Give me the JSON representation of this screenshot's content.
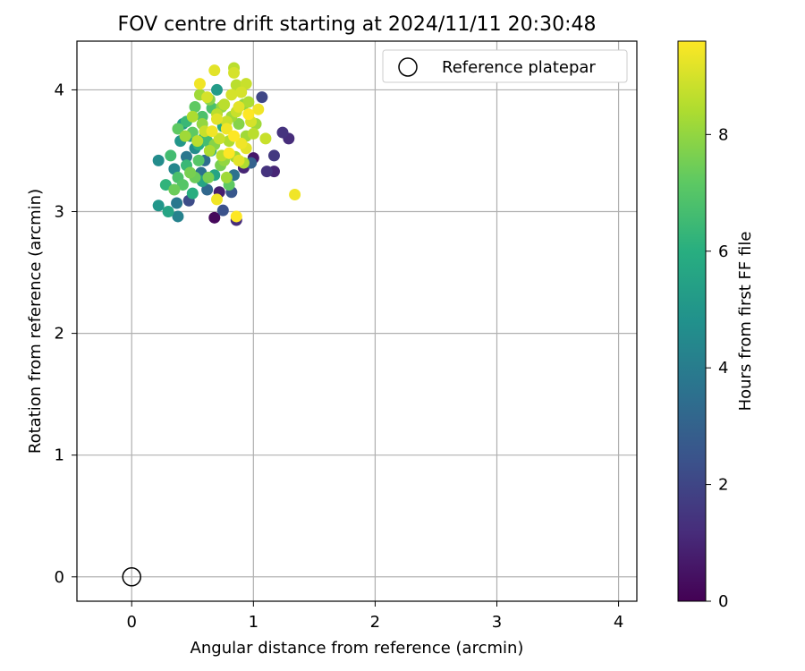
{
  "chart_data": {
    "type": "scatter",
    "title": "FOV centre drift starting at 2024/11/11 20:30:48",
    "xlabel": "Angular distance from reference (arcmin)",
    "ylabel": "Rotation from reference (arcmin)",
    "xlim": [
      -0.45,
      4.15
    ],
    "ylim": [
      -0.2,
      4.4
    ],
    "xticks": [
      0,
      1,
      2,
      3,
      4
    ],
    "yticks": [
      0,
      1,
      2,
      3,
      4
    ],
    "grid": true,
    "legend": {
      "position": "top-right",
      "entries": [
        "Reference platepar"
      ]
    },
    "reference_point": {
      "name": "Reference platepar",
      "x": 0,
      "y": 0
    },
    "colorbar": {
      "label": "Hours from first FF file",
      "colormap": "viridis",
      "range": [
        0,
        9.6
      ],
      "ticks": [
        0,
        2,
        4,
        6,
        8
      ]
    },
    "series": [
      {
        "name": "",
        "points": [
          [
            0.68,
            2.95,
            0.2
          ],
          [
            0.86,
            2.93,
            1.2
          ],
          [
            0.75,
            3.01,
            2.4
          ],
          [
            0.72,
            3.16,
            0.8
          ],
          [
            0.82,
            3.16,
            2.6
          ],
          [
            0.62,
            3.18,
            3.2
          ],
          [
            0.47,
            3.09,
            2.2
          ],
          [
            0.92,
            3.36,
            1.0
          ],
          [
            1.0,
            3.44,
            0.6
          ],
          [
            1.17,
            3.46,
            1.6
          ],
          [
            1.11,
            3.33,
            1.4
          ],
          [
            1.17,
            3.33,
            1.0
          ],
          [
            1.29,
            3.6,
            1.2
          ],
          [
            1.24,
            3.65,
            1.4
          ],
          [
            1.07,
            3.94,
            2.0
          ],
          [
            0.98,
            3.4,
            3.0
          ],
          [
            0.84,
            3.3,
            3.6
          ],
          [
            0.57,
            3.32,
            3.6
          ],
          [
            0.37,
            3.07,
            3.8
          ],
          [
            0.38,
            2.96,
            4.2
          ],
          [
            0.22,
            3.05,
            5.0
          ],
          [
            0.22,
            3.42,
            4.6
          ],
          [
            0.35,
            3.35,
            4.4
          ],
          [
            0.45,
            3.45,
            3.8
          ],
          [
            0.52,
            3.52,
            4.6
          ],
          [
            0.6,
            3.42,
            3.4
          ],
          [
            0.4,
            3.58,
            5.0
          ],
          [
            0.48,
            3.62,
            5.4
          ],
          [
            0.42,
            3.72,
            5.2
          ],
          [
            0.55,
            3.55,
            6.0
          ],
          [
            0.65,
            3.5,
            5.6
          ],
          [
            0.7,
            4.0,
            5.2
          ],
          [
            0.75,
            3.7,
            5.8
          ],
          [
            0.68,
            3.3,
            5.6
          ],
          [
            0.58,
            3.25,
            5.6
          ],
          [
            0.5,
            3.15,
            6.0
          ],
          [
            0.3,
            3.0,
            5.6
          ],
          [
            0.28,
            3.22,
            6.2
          ],
          [
            0.38,
            3.28,
            6.8
          ],
          [
            0.45,
            3.38,
            6.4
          ],
          [
            0.32,
            3.46,
            6.6
          ],
          [
            0.55,
            3.42,
            7.0
          ],
          [
            0.62,
            3.58,
            6.6
          ],
          [
            0.5,
            3.65,
            7.2
          ],
          [
            0.45,
            3.74,
            6.4
          ],
          [
            0.58,
            3.78,
            6.8
          ],
          [
            0.66,
            3.85,
            6.8
          ],
          [
            0.52,
            3.86,
            7.2
          ],
          [
            0.6,
            3.62,
            6.0
          ],
          [
            0.38,
            3.68,
            7.2
          ],
          [
            0.35,
            3.18,
            7.4
          ],
          [
            0.42,
            3.22,
            7.0
          ],
          [
            0.52,
            3.28,
            7.4
          ],
          [
            0.48,
            3.32,
            7.6
          ],
          [
            0.63,
            3.28,
            7.6
          ],
          [
            0.8,
            3.22,
            7.2
          ],
          [
            0.73,
            3.38,
            7.6
          ],
          [
            0.68,
            3.55,
            7.8
          ],
          [
            0.58,
            3.72,
            8.0
          ],
          [
            0.56,
            3.96,
            8.2
          ],
          [
            0.64,
            3.92,
            7.8
          ],
          [
            0.74,
            3.86,
            8.0
          ],
          [
            0.82,
            3.78,
            8.2
          ],
          [
            0.88,
            3.72,
            7.8
          ],
          [
            0.92,
            3.88,
            8.0
          ],
          [
            0.94,
            3.62,
            8.2
          ],
          [
            0.8,
            3.58,
            8.4
          ],
          [
            0.85,
            3.45,
            8.2
          ],
          [
            0.76,
            3.42,
            8.0
          ],
          [
            0.78,
            3.28,
            8.2
          ],
          [
            0.86,
            4.04,
            8.6
          ],
          [
            0.84,
            4.18,
            8.6
          ],
          [
            0.94,
            4.05,
            8.8
          ],
          [
            0.84,
            4.14,
            9.0
          ],
          [
            0.68,
            4.16,
            9.2
          ],
          [
            0.56,
            4.05,
            9.4
          ],
          [
            0.62,
            3.94,
            9.0
          ],
          [
            0.7,
            3.76,
            9.2
          ],
          [
            0.78,
            3.68,
            9.4
          ],
          [
            0.84,
            3.62,
            9.6
          ],
          [
            0.9,
            3.56,
            9.4
          ],
          [
            0.94,
            3.52,
            9.2
          ],
          [
            0.98,
            3.74,
            9.0
          ],
          [
            1.04,
            3.84,
            9.4
          ],
          [
            1.1,
            3.6,
            8.8
          ],
          [
            0.96,
            3.8,
            9.6
          ],
          [
            0.88,
            3.86,
            9.2
          ],
          [
            0.82,
            3.96,
            9.0
          ],
          [
            0.76,
            3.88,
            8.6
          ],
          [
            0.66,
            3.66,
            9.4
          ],
          [
            0.72,
            3.6,
            8.8
          ],
          [
            0.88,
            3.42,
            9.2
          ],
          [
            0.8,
            3.48,
            9.6
          ],
          [
            1.34,
            3.14,
            9.4
          ],
          [
            0.7,
            3.1,
            9.4
          ],
          [
            0.86,
            2.96,
            9.6
          ],
          [
            0.92,
            3.4,
            8.4
          ],
          [
            0.74,
            3.46,
            8.6
          ],
          [
            0.64,
            3.5,
            8.4
          ],
          [
            0.6,
            3.66,
            8.8
          ],
          [
            0.54,
            3.58,
            8.6
          ],
          [
            0.44,
            3.62,
            8.2
          ],
          [
            0.5,
            3.78,
            8.4
          ],
          [
            0.7,
            3.8,
            8.6
          ],
          [
            0.78,
            3.74,
            8.8
          ],
          [
            1.0,
            3.64,
            8.6
          ],
          [
            1.02,
            3.72,
            8.2
          ],
          [
            0.96,
            3.9,
            8.4
          ],
          [
            0.86,
            3.82,
            8.8
          ],
          [
            0.9,
            3.98,
            9.0
          ]
        ]
      }
    ]
  }
}
